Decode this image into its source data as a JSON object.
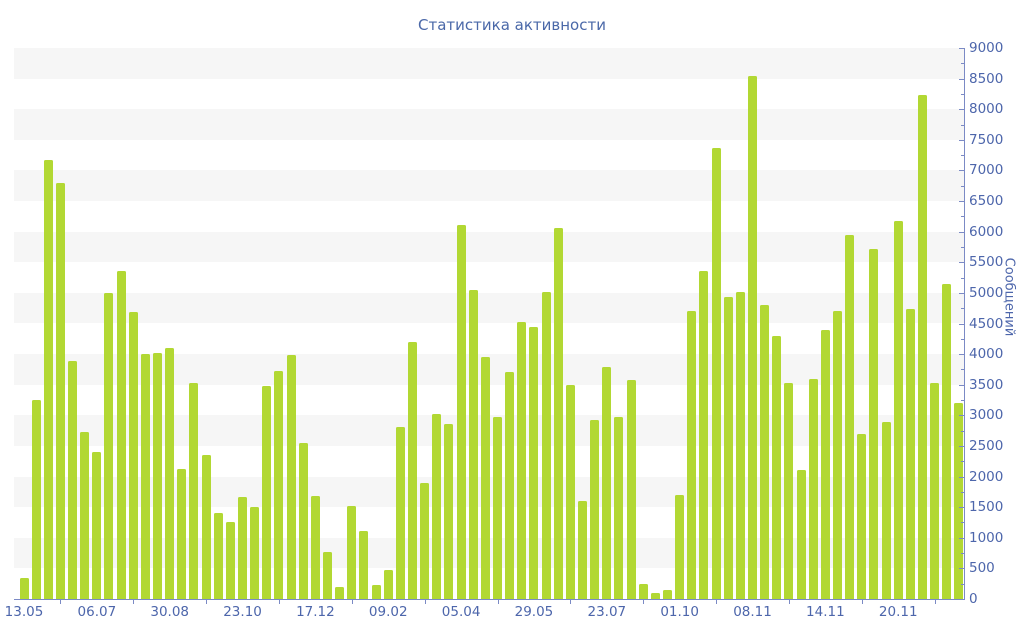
{
  "title": "Статистика активности",
  "colors": {
    "bar": "#b2d833",
    "axis_line": "#7b8ac5",
    "label_text": "#4d66ab",
    "title_text": "#4a68a8",
    "stripe": "#f6f6f6",
    "background": "#ffffff"
  },
  "y_axis": {
    "title": "Сообщений",
    "tick_labels": [
      "0",
      "500",
      "1000",
      "1500",
      "2000",
      "2500",
      "3000",
      "3500",
      "4000",
      "4500",
      "5000",
      "5500",
      "6000",
      "6500",
      "7000",
      "7500",
      "8000",
      "8500",
      "9000"
    ],
    "label_step": 500,
    "minor_tick_step": 250
  },
  "chart_data": {
    "type": "bar",
    "title": "Статистика активности",
    "ylabel": "Сообщений",
    "xlabel": "",
    "ylim": [
      0,
      9000
    ],
    "grid": "alternating-horizontal-stripes-every-500",
    "legend": "none",
    "bar_color": "#b2d833",
    "x_tick_labels": [
      {
        "index": 0,
        "label": "13.05"
      },
      {
        "index": 6,
        "label": "06.07"
      },
      {
        "index": 12,
        "label": "30.08"
      },
      {
        "index": 18,
        "label": "23.10"
      },
      {
        "index": 24,
        "label": "17.12"
      },
      {
        "index": 30,
        "label": "09.02"
      },
      {
        "index": 36,
        "label": "05.04"
      },
      {
        "index": 42,
        "label": "29.05"
      },
      {
        "index": 48,
        "label": "23.07"
      },
      {
        "index": 54,
        "label": "01.10"
      },
      {
        "index": 60,
        "label": "08.11"
      },
      {
        "index": 66,
        "label": "14.11"
      },
      {
        "index": 72,
        "label": "20.11"
      }
    ],
    "values": [
      350,
      3250,
      7170,
      6800,
      3890,
      2720,
      2400,
      5000,
      5350,
      4690,
      4000,
      4020,
      4100,
      2130,
      3530,
      2350,
      1400,
      1250,
      1660,
      1500,
      3480,
      3720,
      3990,
      2550,
      1690,
      770,
      200,
      1520,
      1110,
      230,
      480,
      2810,
      4190,
      1890,
      3030,
      2860,
      6110,
      5040,
      3950,
      2970,
      3710,
      4530,
      4450,
      5020,
      6060,
      3490,
      1600,
      2920,
      3790,
      2970,
      3570,
      250,
      100,
      150,
      1700,
      4700,
      5350,
      7370,
      4930,
      5020,
      8550,
      4800,
      4300,
      3530,
      2100,
      3600,
      4400,
      4700,
      5950,
      2700,
      5720,
      2890,
      6180,
      4730,
      8230,
      3530,
      5140,
      3200
    ]
  }
}
